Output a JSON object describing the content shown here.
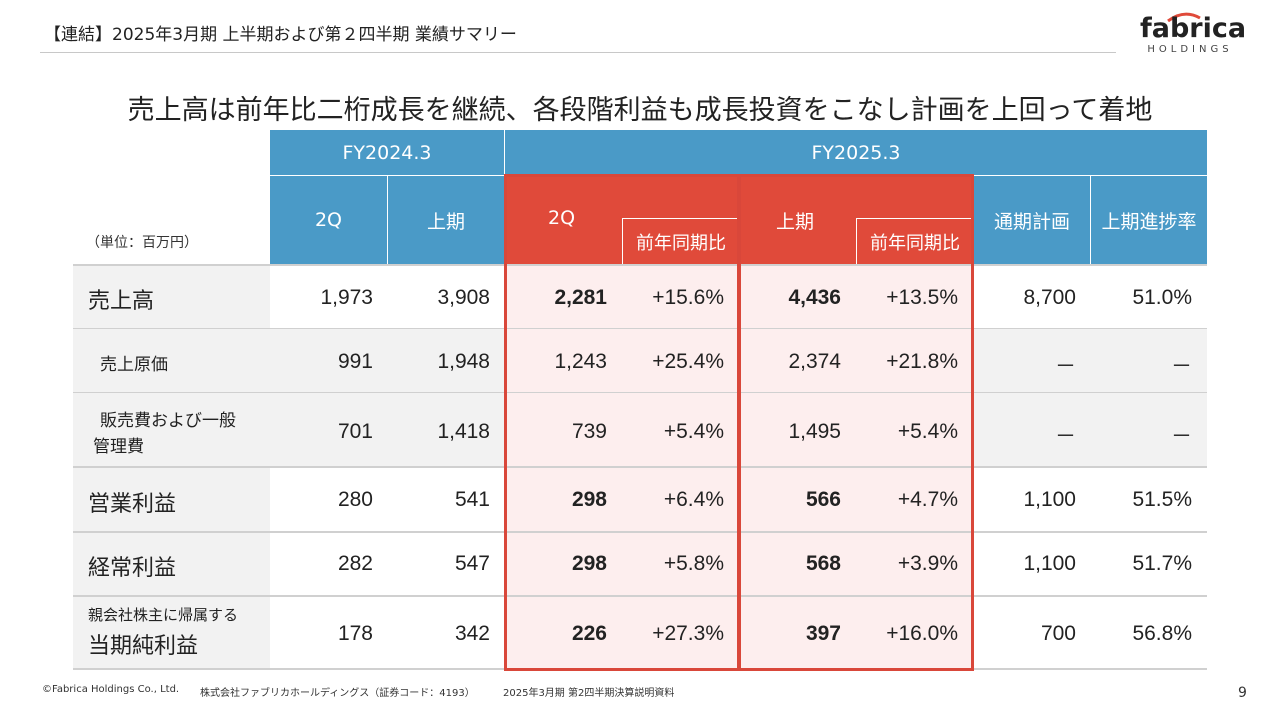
{
  "header": {
    "title": "【連結】2025年3月期 上半期および第２四半期 業績サマリー"
  },
  "logo": {
    "main": "fabrica",
    "sub": "HOLDINGS"
  },
  "headline": "売上高は前年比二桁成長を継続、各段階利益も成長投資をこなし計画を上回って着地",
  "table": {
    "unit": "（単位：百万円）",
    "fy2024": "FY2024.3",
    "fy2025": "FY2025.3",
    "col_2q": "2Q",
    "col_h1": "上期",
    "col_2q_b": "2Q",
    "col_h1_b": "上期",
    "yoy_a": "前年同期比",
    "yoy_b": "前年同期比",
    "col_plan": "通期計画",
    "col_progress": "上期進捗率",
    "rows": [
      {
        "label": "売上高",
        "c1": "1,973",
        "c2": "3,908",
        "c3": "2,281",
        "c4": "+15.6%",
        "c5": "4,436",
        "c6": "+13.5%",
        "c7": "8,700",
        "c8": "51.0%"
      },
      {
        "label": "売上原価",
        "c1": "991",
        "c2": "1,948",
        "c3": "1,243",
        "c4": "+25.4%",
        "c5": "2,374",
        "c6": "+21.8%",
        "c7": "－",
        "c8": "－"
      },
      {
        "label_line1": "販売費および一般",
        "label_line2": "管理費",
        "c1": "701",
        "c2": "1,418",
        "c3": "739",
        "c4": "+5.4%",
        "c5": "1,495",
        "c6": "+5.4%",
        "c7": "－",
        "c8": "－"
      },
      {
        "label": "営業利益",
        "c1": "280",
        "c2": "541",
        "c3": "298",
        "c4": "+6.4%",
        "c5": "566",
        "c6": "+4.7%",
        "c7": "1,100",
        "c8": "51.5%"
      },
      {
        "label": "経常利益",
        "c1": "282",
        "c2": "547",
        "c3": "298",
        "c4": "+5.8%",
        "c5": "568",
        "c6": "+3.9%",
        "c7": "1,100",
        "c8": "51.7%"
      },
      {
        "label_small": "親会社株主に帰属する",
        "label": "当期純利益",
        "c1": "178",
        "c2": "342",
        "c3": "226",
        "c4": "+27.3%",
        "c5": "397",
        "c6": "+16.0%",
        "c7": "700",
        "c8": "56.8%"
      }
    ]
  },
  "footer": {
    "copyright": "©Fabrica Holdings Co., Ltd.",
    "company": "株式会社ファブリカホールディングス（証券コード：4193）",
    "doc": "2025年3月期 第2四半期決算説明資料",
    "page": "9"
  },
  "colors": {
    "header_blue": "#4a9ac7",
    "highlight_red": "#e04a3a",
    "highlight_bg": "#fdeeee",
    "label_bg": "#f2f2f2"
  }
}
